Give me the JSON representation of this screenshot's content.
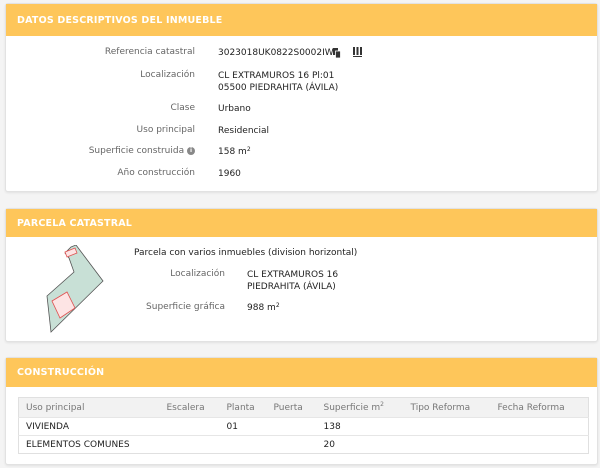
{
  "inmueble": {
    "title": "DATOS DESCRIPTIVOS DEL INMUEBLE",
    "ref_label": "Referencia catastral",
    "ref_value": "3023018UK0822S0002IW",
    "loc_label": "Localización",
    "loc_line1": "CL EXTRAMUROS 16 Pl:01",
    "loc_line2": "05500 PIEDRAHITA (ÁVILA)",
    "clase_label": "Clase",
    "clase_value": "Urbano",
    "uso_label": "Uso principal",
    "uso_value": "Residencial",
    "sup_label": "Superficie construida",
    "sup_value": "158 m",
    "sup_unit_exp": "2",
    "anio_label": "Año construcción",
    "anio_value": "1960"
  },
  "parcela": {
    "title": "PARCELA CATASTRAL",
    "desc": "Parcela con varios inmuebles (division horizontal)",
    "loc_label": "Localización",
    "loc_line1": "CL EXTRAMUROS 16",
    "loc_line2": "PIEDRAHITA (ÁVILA)",
    "sup_label": "Superficie gráfica",
    "sup_value": "988 m",
    "sup_unit_exp": "2"
  },
  "construccion": {
    "title": "CONSTRUCCIÓN",
    "columns": [
      "Uso principal",
      "Escalera",
      "Planta",
      "Puerta",
      "Superficie m",
      "Tipo Reforma",
      "Fecha Reforma"
    ],
    "sup_exp": "2",
    "rows": [
      [
        "VIVIENDA",
        "",
        "01",
        "",
        "138",
        "",
        ""
      ],
      [
        "ELEMENTOS COMUNES",
        "",
        "",
        "",
        "20",
        "",
        ""
      ]
    ]
  },
  "colors": {
    "header": "#fec65a",
    "parcel_fill": "#c8e0d6",
    "building_outline": "#e05050"
  },
  "icons": [
    "copy-icon",
    "barcode-icon",
    "info-icon"
  ]
}
